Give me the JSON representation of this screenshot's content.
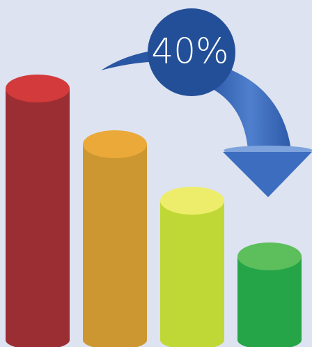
{
  "badge": {
    "label": "40%"
  }
}
